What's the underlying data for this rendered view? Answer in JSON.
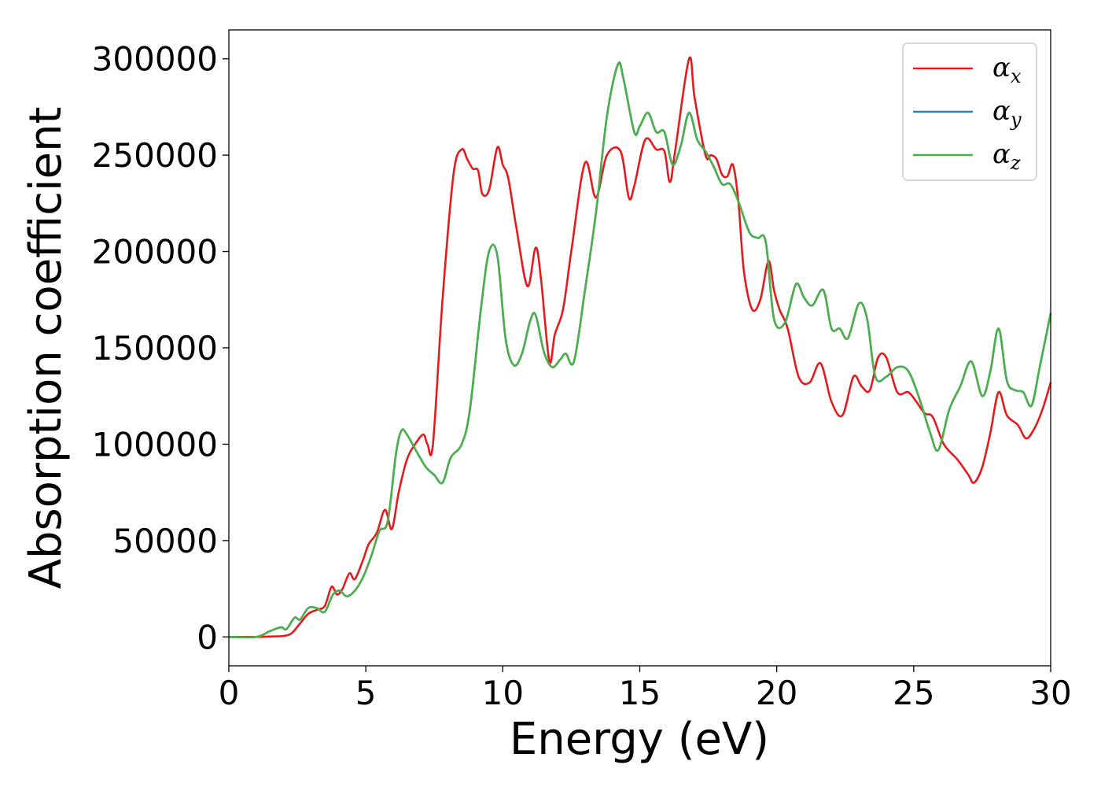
{
  "chart_data": {
    "type": "line",
    "xlabel": "Energy (eV)",
    "ylabel": "Absorption coefficient",
    "xlim": [
      0,
      30
    ],
    "ylim": [
      -15000,
      315000
    ],
    "xticks": [
      0,
      5,
      10,
      15,
      20,
      25,
      30
    ],
    "xtick_labels": [
      "0",
      "5",
      "10",
      "15",
      "20",
      "25",
      "30"
    ],
    "yticks": [
      0,
      50000,
      100000,
      150000,
      200000,
      250000,
      300000
    ],
    "ytick_labels": [
      "0",
      "50000",
      "100000",
      "150000",
      "200000",
      "250000",
      "300000"
    ],
    "grid": false,
    "legend_position": "top-right",
    "series": [
      {
        "name": "α",
        "subscript": "x",
        "color": "#e41a1c",
        "x": [
          0,
          1,
          1.5,
          2,
          2.3,
          2.6,
          2.9,
          3.2,
          3.5,
          3.75,
          3.95,
          4.15,
          4.4,
          4.6,
          4.9,
          5.1,
          5.4,
          5.7,
          5.95,
          6.2,
          6.5,
          6.8,
          7.1,
          7.25,
          7.45,
          7.8,
          8.2,
          8.5,
          8.7,
          8.9,
          9.1,
          9.25,
          9.5,
          9.8,
          10.0,
          10.2,
          10.5,
          10.9,
          11.2,
          11.4,
          11.7,
          11.9,
          12.2,
          12.5,
          13.0,
          13.4,
          13.8,
          14.3,
          14.6,
          14.8,
          15.2,
          15.6,
          15.9,
          16.1,
          16.3,
          16.8,
          17.0,
          17.4,
          17.6,
          17.8,
          18.0,
          18.2,
          18.4,
          18.6,
          18.8,
          19.1,
          19.4,
          19.7,
          19.9,
          20.1,
          20.4,
          20.8,
          21.2,
          21.6,
          22.0,
          22.4,
          22.8,
          23.1,
          23.4,
          23.7,
          24.0,
          24.4,
          24.8,
          25.1,
          25.4,
          25.7,
          26.1,
          26.6,
          27.0,
          27.2,
          27.5,
          27.8,
          28.1,
          28.4,
          28.8,
          29.1,
          29.4,
          29.7,
          30.0
        ],
        "values": [
          0,
          0,
          200,
          500,
          2000,
          7000,
          12000,
          14000,
          16000,
          26000,
          22000,
          25000,
          33000,
          30000,
          40000,
          48000,
          54000,
          66000,
          56000,
          75000,
          92000,
          100000,
          105000,
          100000,
          100000,
          175000,
          240000,
          253000,
          248000,
          243000,
          242000,
          230000,
          232000,
          254000,
          245000,
          238000,
          212000,
          182000,
          202000,
          185000,
          143000,
          157000,
          170000,
          200000,
          246000,
          228000,
          250000,
          252000,
          228000,
          234000,
          258000,
          253000,
          252000,
          236000,
          253000,
          300000,
          280000,
          250000,
          250000,
          248000,
          240000,
          239000,
          245000,
          226000,
          190000,
          170000,
          175000,
          195000,
          180000,
          170000,
          160000,
          135000,
          132000,
          142000,
          122000,
          115000,
          135000,
          130000,
          128000,
          145000,
          145000,
          127000,
          127000,
          122000,
          116000,
          114000,
          100000,
          92000,
          84000,
          80000,
          88000,
          106000,
          127000,
          115000,
          110000,
          103000,
          108000,
          118000,
          132000
        ]
      },
      {
        "name": "α",
        "subscript": "y",
        "color": "#377eb8",
        "x": [
          0,
          1,
          1.5,
          1.9,
          2.1,
          2.4,
          2.6,
          2.9,
          3.2,
          3.5,
          3.8,
          4.05,
          4.3,
          4.6,
          4.9,
          5.2,
          5.5,
          5.8,
          6.1,
          6.3,
          6.5,
          6.9,
          7.2,
          7.5,
          7.8,
          8.1,
          8.5,
          8.8,
          9.2,
          9.5,
          9.8,
          10.1,
          10.4,
          10.7,
          11.0,
          11.2,
          11.5,
          11.8,
          12.1,
          12.3,
          12.6,
          13.0,
          13.4,
          13.8,
          14.2,
          14.4,
          14.8,
          15.0,
          15.3,
          15.6,
          15.9,
          16.2,
          16.5,
          16.8,
          17.1,
          17.4,
          17.7,
          18.0,
          18.3,
          18.6,
          19.0,
          19.3,
          19.6,
          19.9,
          20.3,
          20.7,
          21.0,
          21.3,
          21.7,
          22.0,
          22.3,
          22.6,
          23.0,
          23.3,
          23.6,
          24.0,
          24.4,
          24.8,
          25.2,
          25.6,
          25.9,
          26.3,
          26.7,
          27.1,
          27.5,
          27.8,
          28.1,
          28.4,
          28.7,
          29.0,
          29.3,
          29.6,
          30.0
        ],
        "values": [
          0,
          0,
          3000,
          5000,
          4000,
          10000,
          9000,
          15000,
          15000,
          13000,
          22000,
          24000,
          21000,
          24000,
          31000,
          42000,
          55000,
          60000,
          95000,
          107000,
          105000,
          95000,
          88000,
          84000,
          80000,
          93000,
          100000,
          118000,
          170000,
          200000,
          198000,
          155000,
          141000,
          147000,
          164000,
          167000,
          148000,
          140000,
          144000,
          147000,
          143000,
          180000,
          220000,
          270000,
          297000,
          290000,
          262000,
          265000,
          272000,
          262000,
          262000,
          245000,
          255000,
          272000,
          258000,
          252000,
          244000,
          235000,
          235000,
          226000,
          210000,
          207000,
          205000,
          165000,
          163000,
          183000,
          176000,
          172000,
          180000,
          160000,
          160000,
          155000,
          173000,
          165000,
          135000,
          135000,
          140000,
          138000,
          124000,
          106000,
          97000,
          118000,
          130000,
          143000,
          125000,
          138000,
          160000,
          133000,
          128000,
          127000,
          120000,
          140000,
          168000
        ]
      },
      {
        "name": "α",
        "subscript": "z",
        "color": "#4daf4a",
        "x": [
          0,
          1,
          1.5,
          1.9,
          2.1,
          2.4,
          2.6,
          2.9,
          3.2,
          3.5,
          3.8,
          4.05,
          4.3,
          4.6,
          4.9,
          5.2,
          5.5,
          5.8,
          6.1,
          6.3,
          6.5,
          6.9,
          7.2,
          7.5,
          7.8,
          8.1,
          8.5,
          8.8,
          9.2,
          9.5,
          9.8,
          10.1,
          10.4,
          10.7,
          11.0,
          11.2,
          11.5,
          11.8,
          12.1,
          12.3,
          12.6,
          13.0,
          13.4,
          13.8,
          14.2,
          14.4,
          14.8,
          15.0,
          15.3,
          15.6,
          15.9,
          16.2,
          16.5,
          16.8,
          17.1,
          17.4,
          17.7,
          18.0,
          18.3,
          18.6,
          19.0,
          19.3,
          19.6,
          19.9,
          20.3,
          20.7,
          21.0,
          21.3,
          21.7,
          22.0,
          22.3,
          22.6,
          23.0,
          23.3,
          23.6,
          24.0,
          24.4,
          24.8,
          25.2,
          25.6,
          25.9,
          26.3,
          26.7,
          27.1,
          27.5,
          27.8,
          28.1,
          28.4,
          28.7,
          29.0,
          29.3,
          29.6,
          30.0
        ],
        "values": [
          0,
          0,
          3000,
          5000,
          4000,
          10000,
          9000,
          15000,
          15000,
          13000,
          22000,
          24000,
          21000,
          24000,
          31000,
          42000,
          55000,
          60000,
          95000,
          107000,
          105000,
          95000,
          88000,
          84000,
          80000,
          93000,
          100000,
          118000,
          170000,
          200000,
          198000,
          155000,
          141000,
          147000,
          164000,
          167000,
          148000,
          140000,
          144000,
          147000,
          143000,
          180000,
          220000,
          270000,
          297000,
          290000,
          262000,
          265000,
          272000,
          262000,
          262000,
          245000,
          255000,
          272000,
          258000,
          252000,
          244000,
          235000,
          235000,
          226000,
          210000,
          207000,
          205000,
          165000,
          163000,
          183000,
          176000,
          172000,
          180000,
          160000,
          160000,
          155000,
          173000,
          165000,
          135000,
          135000,
          140000,
          138000,
          124000,
          106000,
          97000,
          118000,
          130000,
          143000,
          125000,
          138000,
          160000,
          133000,
          128000,
          127000,
          120000,
          140000,
          168000
        ]
      }
    ]
  }
}
